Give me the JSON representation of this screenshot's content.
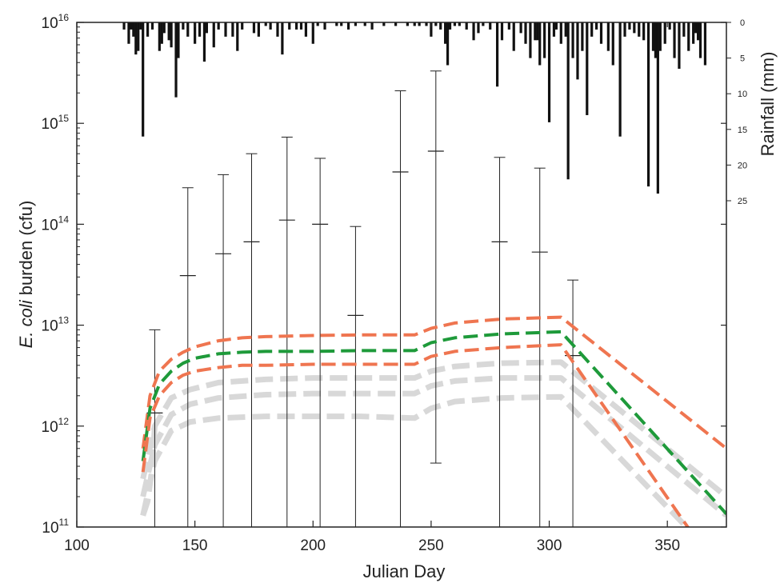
{
  "chart_data": {
    "type": "line",
    "title": "",
    "xlabel": "Julian Day",
    "ylabel": {
      "italic": "E. coli",
      "rest": " burden (cfu)"
    },
    "y2label": "Rainfall (mm)",
    "xlim": [
      100,
      375
    ],
    "ylim": [
      100000000000.0,
      1e+16
    ],
    "yscale": "log",
    "x_ticks": [
      100,
      150,
      200,
      250,
      300,
      350
    ],
    "y_ticks": [
      {
        "base": "10",
        "exp": "11"
      },
      {
        "base": "10",
        "exp": "12"
      },
      {
        "base": "10",
        "exp": "13"
      },
      {
        "base": "10",
        "exp": "14"
      },
      {
        "base": "10",
        "exp": "15"
      },
      {
        "base": "10",
        "exp": "16"
      }
    ],
    "y2_ticks": [
      "0",
      "5",
      "10",
      "15",
      "20",
      "25"
    ],
    "y2lim": [
      0,
      25
    ],
    "colors": {
      "bound": "#EF7550",
      "median": "#1E9A3A",
      "gray": "#D8D8D8",
      "bars": "#111111",
      "axis": "#222222"
    },
    "series": [
      {
        "role": "upper",
        "style": "dashed",
        "color": "#EF7550",
        "x": [
          128,
          131,
          135,
          140,
          145,
          150,
          160,
          170,
          180,
          200,
          220,
          243,
          250,
          260,
          280,
          305,
          375
        ],
        "y": [
          600000000000.0,
          2000000000000.0,
          3500000000000.0,
          4600000000000.0,
          5400000000000.0,
          6100000000000.0,
          7000000000000.0,
          7500000000000.0,
          7700000000000.0,
          7900000000000.0,
          8000000000000.0,
          8000000000000.0,
          9300000000000.0,
          10500000000000.0,
          11500000000000.0,
          12000000000000.0,
          600000000000.0
        ]
      },
      {
        "role": "median",
        "style": "dashed",
        "color": "#1E9A3A",
        "x": [
          128,
          131,
          135,
          140,
          145,
          150,
          160,
          170,
          180,
          200,
          220,
          243,
          250,
          260,
          280,
          305,
          375
        ],
        "y": [
          450000000000.0,
          1500000000000.0,
          2600000000000.0,
          3500000000000.0,
          4200000000000.0,
          4700000000000.0,
          5200000000000.0,
          5400000000000.0,
          5500000000000.0,
          5500000000000.0,
          5600000000000.0,
          5600000000000.0,
          6700000000000.0,
          7500000000000.0,
          8200000000000.0,
          8600000000000.0,
          135000000000.0
        ]
      },
      {
        "role": "lower",
        "style": "dashed",
        "color": "#EF7550",
        "x": [
          128,
          131,
          135,
          140,
          145,
          150,
          160,
          170,
          180,
          200,
          220,
          243,
          250,
          260,
          280,
          305,
          360
        ],
        "y": [
          350000000000.0,
          1200000000000.0,
          2000000000000.0,
          2700000000000.0,
          3200000000000.0,
          3500000000000.0,
          3800000000000.0,
          4000000000000.0,
          4000000000000.0,
          4100000000000.0,
          4100000000000.0,
          4100000000000.0,
          4900000000000.0,
          5500000000000.0,
          6000000000000.0,
          6400000000000.0,
          90000000000.0
        ]
      },
      {
        "role": "gray-1",
        "style": "dashed",
        "color": "#D8D8D8",
        "x": [
          128,
          133,
          140,
          148,
          160,
          180,
          200,
          220,
          243,
          250,
          260,
          280,
          305,
          375
        ],
        "y": [
          300000000000.0,
          1000000000000.0,
          1900000000000.0,
          2300000000000.0,
          2700000000000.0,
          2900000000000.0,
          3000000000000.0,
          3000000000000.0,
          3000000000000.0,
          3500000000000.0,
          3900000000000.0,
          4200000000000.0,
          4300000000000.0,
          200000000000.0
        ]
      },
      {
        "role": "gray-2",
        "style": "dashed",
        "color": "#D8D8D8",
        "x": [
          128,
          133,
          140,
          148,
          160,
          180,
          200,
          220,
          243,
          250,
          260,
          280,
          305,
          375
        ],
        "y": [
          200000000000.0,
          650000000000.0,
          1300000000000.0,
          1650000000000.0,
          1900000000000.0,
          2050000000000.0,
          2100000000000.0,
          2100000000000.0,
          2100000000000.0,
          2500000000000.0,
          2800000000000.0,
          3000000000000.0,
          3000000000000.0,
          130000000000.0
        ]
      },
      {
        "role": "gray-3",
        "style": "dashed",
        "color": "#D8D8D8",
        "x": [
          128,
          133,
          140,
          148,
          160,
          180,
          200,
          220,
          243,
          250,
          260,
          280,
          305,
          360
        ],
        "y": [
          130000000000.0,
          450000000000.0,
          900000000000.0,
          1100000000000.0,
          1200000000000.0,
          1250000000000.0,
          1250000000000.0,
          1250000000000.0,
          1200000000000.0,
          1500000000000.0,
          1750000000000.0,
          1900000000000.0,
          1950000000000.0,
          90000000000.0
        ]
      },
      {
        "role": "gray-4",
        "style": "dashed",
        "color": "#D8D8D8",
        "x": [
          128,
          130,
          132,
          133
        ],
        "y": [
          130000000000.0,
          180000000000.0,
          400000000000.0,
          1000000000000.0
        ]
      }
    ],
    "error_bars": [
      {
        "x": 133,
        "y": 1350000000000.0,
        "low": 100000000000.0,
        "high": 9000000000000.0
      },
      {
        "x": 147,
        "y": 31000000000000.0,
        "low": 100000000000.0,
        "high": 230000000000000.0
      },
      {
        "x": 162,
        "y": 51000000000000.0,
        "low": 100000000000.0,
        "high": 310000000000000.0
      },
      {
        "x": 174,
        "y": 67000000000000.0,
        "low": 100000000000.0,
        "high": 500000000000000.0
      },
      {
        "x": 189,
        "y": 110000000000000.0,
        "low": 100000000000.0,
        "high": 730000000000000.0
      },
      {
        "x": 203,
        "y": 100000000000000.0,
        "low": 100000000000.0,
        "high": 450000000000000.0
      },
      {
        "x": 218,
        "y": 12500000000000.0,
        "low": 100000000000.0,
        "high": 95000000000000.0
      },
      {
        "x": 237,
        "y": 330000000000000.0,
        "low": 100000000000.0,
        "high": 2100000000000000.0
      },
      {
        "x": 252,
        "y": 530000000000000.0,
        "low": 430000000000.0,
        "high": 3300000000000000.0
      },
      {
        "x": 279,
        "y": 67000000000000.0,
        "low": 100000000000.0,
        "high": 460000000000000.0
      },
      {
        "x": 296,
        "y": 53000000000000.0,
        "low": 100000000000.0,
        "high": 360000000000000.0
      },
      {
        "x": 310,
        "y": 5000000000000.0,
        "low": 100000000000.0,
        "high": 28000000000000.0
      }
    ],
    "rainfall": {
      "x": [
        120,
        122,
        123,
        124,
        125,
        126,
        127,
        128,
        130,
        132,
        135,
        136,
        137,
        139,
        140,
        142,
        143,
        145,
        147,
        150,
        152,
        154,
        155,
        158,
        160,
        163,
        166,
        168,
        170,
        175,
        177,
        180,
        182,
        185,
        187,
        190,
        193,
        195,
        197,
        200,
        202,
        205,
        210,
        212,
        215,
        218,
        222,
        225,
        230,
        235,
        240,
        243,
        245,
        248,
        250,
        252,
        254,
        256,
        257,
        258,
        260,
        262,
        265,
        268,
        270,
        272,
        275,
        278,
        280,
        283,
        285,
        288,
        290,
        292,
        294,
        295,
        296,
        298,
        300,
        302,
        303,
        305,
        307,
        308,
        310,
        312,
        314,
        316,
        318,
        320,
        322,
        325,
        327,
        330,
        332,
        334,
        336,
        338,
        340,
        342,
        344,
        345,
        346,
        347,
        349,
        351,
        353,
        355,
        357,
        359,
        361,
        362,
        363,
        364,
        366
      ],
      "mm": [
        1,
        3,
        1,
        2,
        4.5,
        4,
        1,
        16,
        2,
        1,
        4,
        3,
        1.5,
        2.5,
        3.5,
        10.5,
        5,
        1,
        2,
        3,
        2,
        5.5,
        1.5,
        3.5,
        1,
        2,
        2,
        4,
        1,
        1.5,
        2,
        0.5,
        1,
        2,
        4.5,
        1,
        1,
        1,
        2,
        3,
        0.5,
        1,
        0.5,
        0.5,
        1,
        0.5,
        0.5,
        1,
        0.5,
        0.5,
        0.5,
        0.5,
        0.5,
        0.5,
        2,
        0.5,
        1,
        3,
        6,
        1,
        0.5,
        0.5,
        1,
        2.5,
        1.5,
        0.5,
        1,
        9,
        2.5,
        1,
        4,
        1.5,
        3,
        5,
        2.5,
        2.5,
        6,
        5,
        14,
        2,
        1,
        3,
        2,
        22,
        5,
        8,
        4,
        13,
        2,
        1,
        3,
        4,
        6,
        16,
        2,
        1,
        1.5,
        2,
        2.5,
        23,
        4,
        5,
        24,
        4,
        3,
        1,
        5,
        6.5,
        2,
        4,
        3,
        1.5,
        2.5,
        5,
        6,
        7,
        4.5,
        3
      ]
    }
  }
}
